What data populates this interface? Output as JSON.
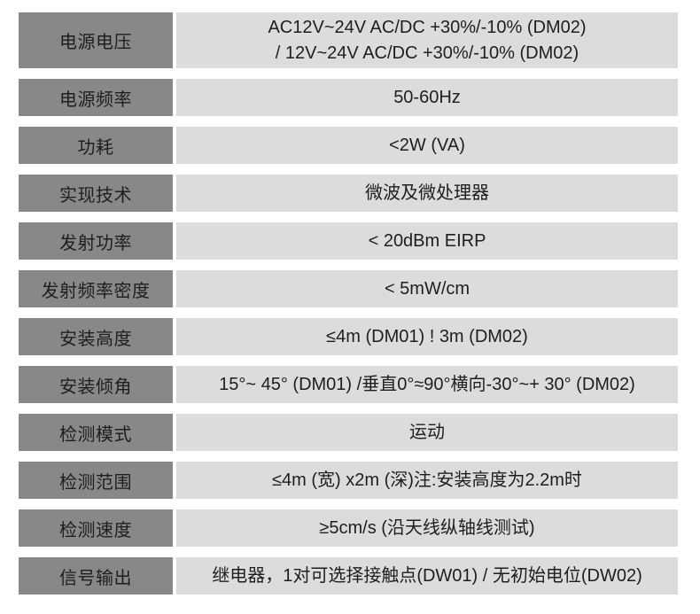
{
  "colors": {
    "label_bg": "#888888",
    "value_bg": "#dcdcdc",
    "text": "#1e1e1e",
    "page_bg": "#ffffff"
  },
  "table": {
    "rows": [
      {
        "label": "电源电压",
        "value": "AC12V~24V AC/DC +30%/-10% (DM02)\n/ 12V~24V AC/DC +30%/-10% (DM02)",
        "tall": true
      },
      {
        "label": "电源频率",
        "value": "50-60Hz",
        "tall": false
      },
      {
        "label": "功耗",
        "value": "<2W (VA)",
        "tall": false
      },
      {
        "label": "实现技术",
        "value": "微波及微处理器",
        "tall": false
      },
      {
        "label": "发射功率",
        "value": "< 20dBm EIRP",
        "tall": false
      },
      {
        "label": "发射频率密度",
        "value": "< 5mW/cm",
        "tall": false
      },
      {
        "label": "安装高度",
        "value": "≤4m (DM01) ! 3m (DM02)",
        "tall": false
      },
      {
        "label": "安装倾角",
        "value": "15°~ 45° (DM01) /垂直0°≈90°横向-30°~+ 30° (DM02)",
        "tall": false
      },
      {
        "label": "检测模式",
        "value": "运动",
        "tall": false
      },
      {
        "label": "检测范围",
        "value": "≤4m (宽) x2m (深)注:安装高度为2.2m时",
        "tall": false
      },
      {
        "label": "检测速度",
        "value": "≥5cm/s (沿天线纵轴线测试)",
        "tall": false
      },
      {
        "label": "信号输出",
        "value": "继电器，1对可选择接触点(DW01) / 无初始电位(DW02)",
        "tall": false
      }
    ]
  }
}
